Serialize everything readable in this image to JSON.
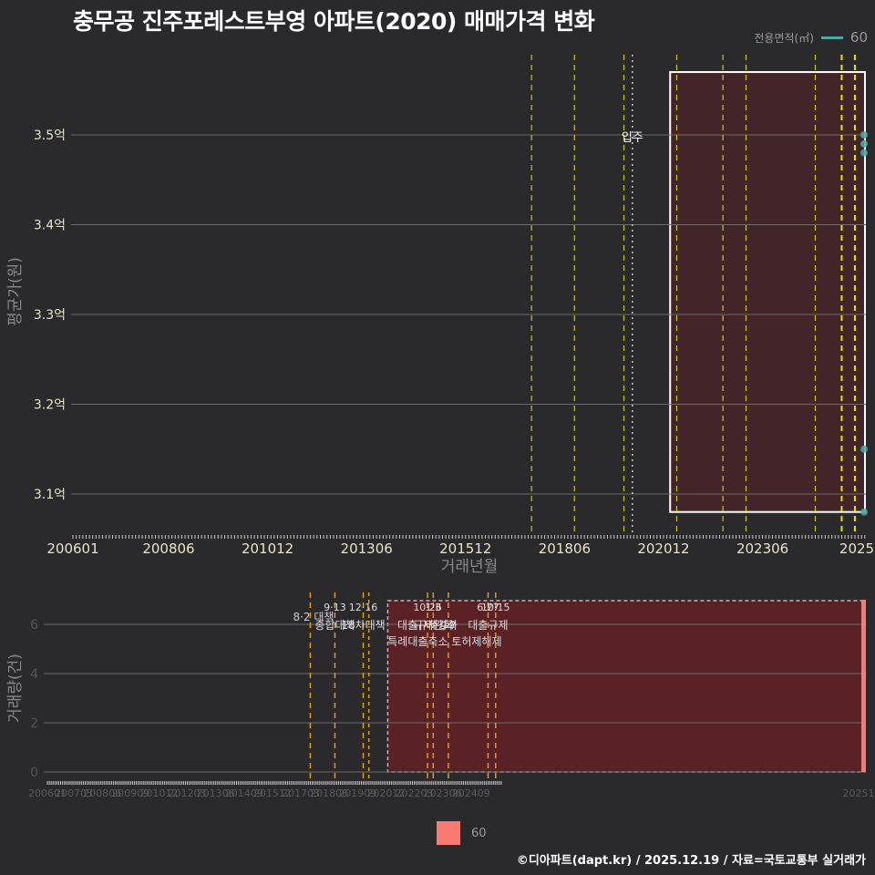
{
  "title": "충무공 진주포레스트부영 아파트(2020) 매매가격 변화",
  "legend_top": {
    "label": "전용면적(㎡)",
    "value": "60",
    "color": "#4aa8a8"
  },
  "legend_bottom": {
    "value": "60",
    "color": "#f87a70"
  },
  "footer": "©디아파트(dapt.kr) / 2025.12.19 / 자료=국토교통부 실거래가",
  "chart_data": [
    {
      "type": "scatter",
      "title": "충무공 진주포레스트부영 아파트(2020) 매매가격 변화",
      "xlabel": "거래년월",
      "ylabel": "평균가(원)",
      "x_ticks": [
        "200601",
        "200806",
        "201012",
        "201306",
        "201512",
        "201806",
        "202012",
        "202306",
        "2025"
      ],
      "y_ticks": [
        "3.1억",
        "3.2억",
        "3.3억",
        "3.4억",
        "3.5억"
      ],
      "ylim": [
        3.06,
        3.59
      ],
      "grid": true,
      "series": [
        {
          "name": "60",
          "color": "#4aa8a8",
          "points": [
            {
              "x": "202511",
              "y": 3.5
            },
            {
              "x": "202511",
              "y": 3.49
            },
            {
              "x": "202511",
              "y": 3.48
            },
            {
              "x": "202512",
              "y": 3.15
            },
            {
              "x": "202512",
              "y": 3.08
            }
          ]
        }
      ],
      "annotations": [
        {
          "text": "입주",
          "x": "202002",
          "style": "dotted-white"
        }
      ],
      "policy_lines": [
        "201708",
        "201809",
        "201912",
        "202104",
        "202206",
        "202301",
        "202410",
        "202506",
        "202510"
      ],
      "highlight_rect": {
        "from": "202102",
        "to": "202512",
        "y_from": 3.08,
        "y_to": 3.57
      }
    },
    {
      "type": "bar",
      "xlabel": "",
      "ylabel": "거래량(건)",
      "x_ticks": [
        "200601",
        "200703",
        "200806",
        "200909",
        "201012",
        "201203",
        "201306",
        "201409",
        "201512",
        "201703",
        "201806",
        "201909",
        "202012",
        "202203",
        "202306",
        "202409",
        "20251"
      ],
      "y_ticks": [
        "0",
        "2",
        "4",
        "6"
      ],
      "ylim": [
        0,
        7
      ],
      "grid": true,
      "series": [
        {
          "name": "60",
          "color": "#f87a70",
          "points": [
            {
              "x": "202512",
              "y": 7
            }
          ]
        }
      ],
      "annotations": [
        {
          "date": "8·2",
          "text": "대책",
          "x": "201708"
        },
        {
          "date": "9·13",
          "text": "종합대책",
          "x": "201809"
        },
        {
          "date": "12·16",
          "text": "18차대책",
          "x": "201912"
        },
        {
          "date": "10·26",
          "text": "대출규제강화",
          "x": "202210"
        },
        {
          "date": "1·3",
          "text": "규제완화",
          "x": "202301"
        },
        {
          "date": "9·7",
          "text": "특례대출축소 토허제해제",
          "x": "202309"
        },
        {
          "date": "6·27",
          "text": "대출규제",
          "x": "202506"
        },
        {
          "date": "10·15",
          "text": "",
          "x": "202510"
        }
      ],
      "highlight_rect": {
        "from": "202012",
        "to": "202512"
      }
    }
  ]
}
